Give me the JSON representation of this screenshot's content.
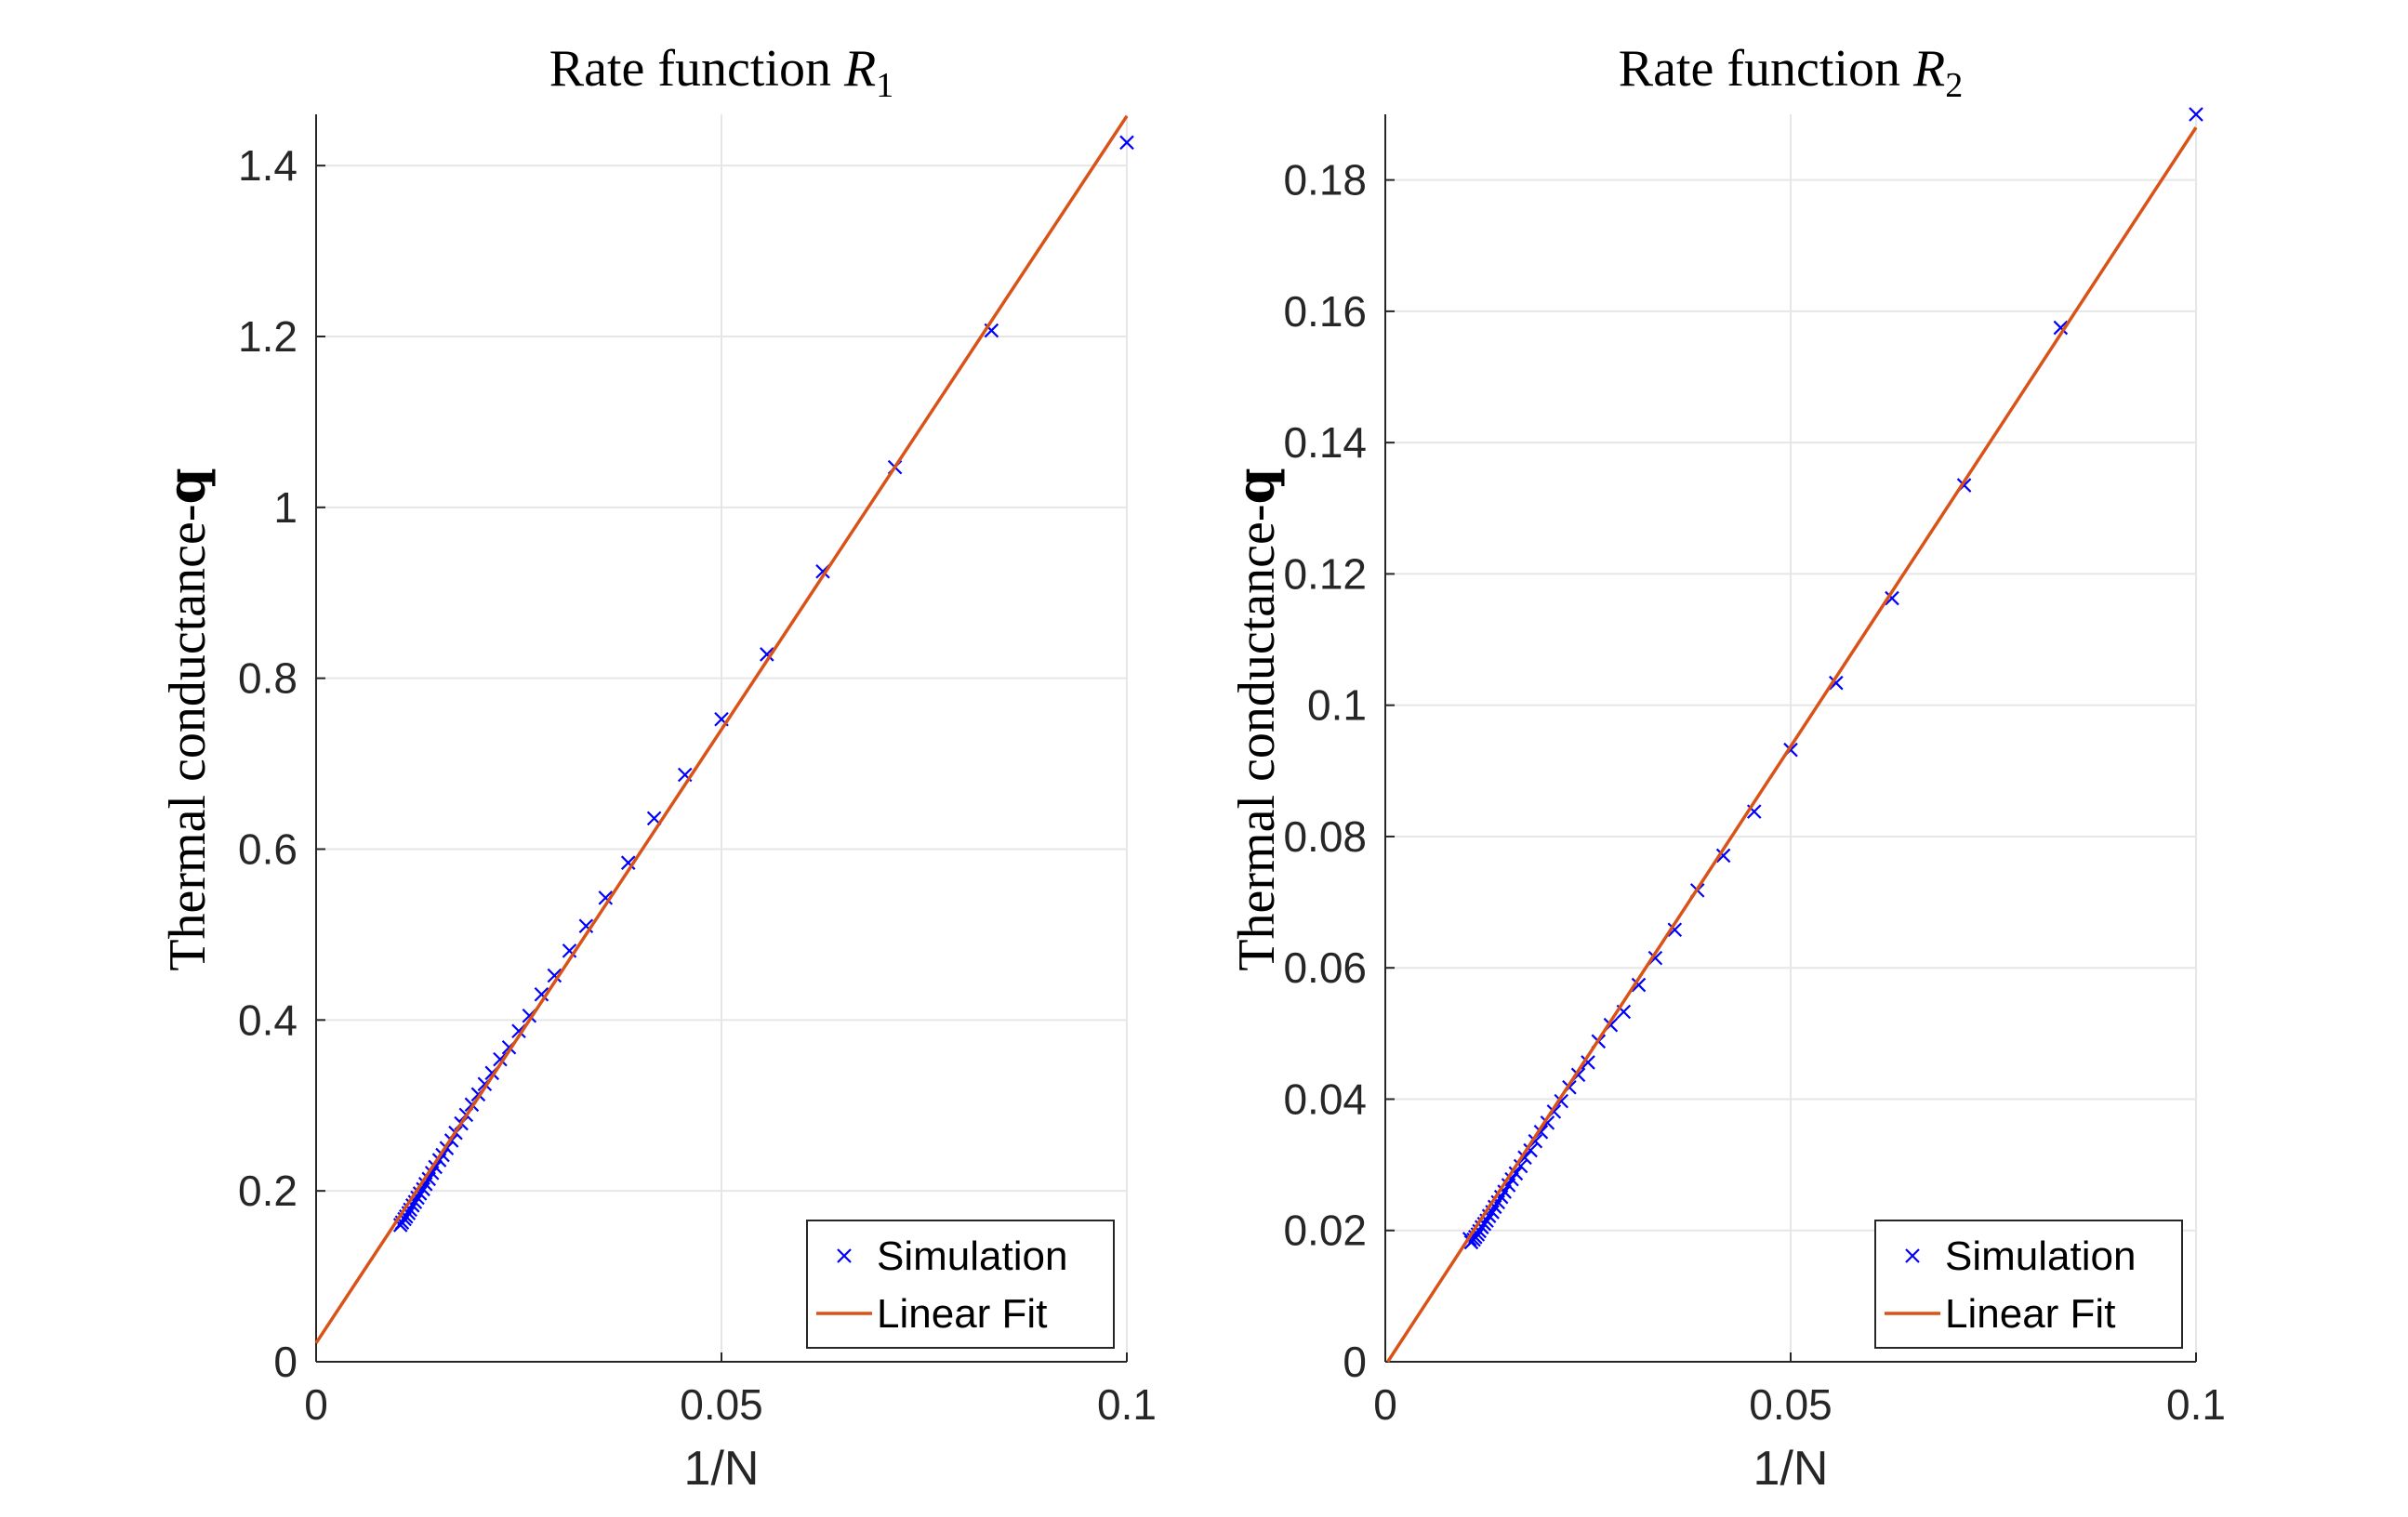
{
  "chart_data": [
    {
      "type": "scatter",
      "title_prefix": "Rate function ",
      "title_math": "R",
      "title_sub": "1",
      "xlabel": "1/N",
      "ylabel_prefix": "Thermal conductance-",
      "ylabel_bold": "q",
      "xlim": [
        0,
        0.1
      ],
      "ylim": [
        0,
        1.46
      ],
      "xticks": [
        0,
        0.05,
        0.1
      ],
      "xtick_labels": [
        "0",
        "0.05",
        "0.1"
      ],
      "yticks": [
        0,
        0.2,
        0.4,
        0.6,
        0.8,
        1.0,
        1.2,
        1.4
      ],
      "ytick_labels": [
        "0",
        "0.2",
        "0.4",
        "0.6",
        "0.8",
        "1",
        "1.2",
        "1.4"
      ],
      "grid": true,
      "legend_location": "bottom-right",
      "series": [
        {
          "name": "Simulation",
          "marker": "x",
          "color": "#0000ff",
          "points": [
            [
              0.1,
              1.427
            ],
            [
              0.0833,
              1.207
            ],
            [
              0.0714,
              1.047
            ],
            [
              0.0625,
              0.925
            ],
            [
              0.0556,
              0.828
            ],
            [
              0.05,
              0.752
            ],
            [
              0.0455,
              0.687
            ],
            [
              0.0417,
              0.636
            ],
            [
              0.0385,
              0.584
            ],
            [
              0.0357,
              0.543
            ],
            [
              0.0333,
              0.51
            ],
            [
              0.03125,
              0.481
            ],
            [
              0.0294,
              0.452
            ],
            [
              0.0278,
              0.43
            ],
            [
              0.0263,
              0.405
            ],
            [
              0.025,
              0.387
            ],
            [
              0.0238,
              0.368
            ],
            [
              0.0227,
              0.354
            ],
            [
              0.0217,
              0.338
            ],
            [
              0.0208,
              0.325
            ],
            [
              0.02,
              0.313
            ],
            [
              0.0192,
              0.301
            ],
            [
              0.0185,
              0.289
            ],
            [
              0.0179,
              0.279
            ],
            [
              0.0172,
              0.268
            ],
            [
              0.0167,
              0.259
            ],
            [
              0.0161,
              0.25
            ],
            [
              0.0156,
              0.242
            ],
            [
              0.0152,
              0.236
            ],
            [
              0.0147,
              0.228
            ],
            [
              0.0143,
              0.221
            ],
            [
              0.0139,
              0.214
            ],
            [
              0.0135,
              0.208
            ],
            [
              0.0132,
              0.202
            ],
            [
              0.0128,
              0.197
            ],
            [
              0.0125,
              0.192
            ],
            [
              0.0122,
              0.187
            ],
            [
              0.0119,
              0.183
            ],
            [
              0.0116,
              0.178
            ],
            [
              0.0114,
              0.174
            ],
            [
              0.0111,
              0.17
            ],
            [
              0.0109,
              0.167
            ],
            [
              0.0106,
              0.163
            ],
            [
              0.0104,
              0.16
            ]
          ]
        },
        {
          "name": "Linear Fit",
          "line": true,
          "color": "#d95319",
          "points": [
            [
              0,
              0.022
            ],
            [
              0.1,
              1.458
            ]
          ]
        }
      ]
    },
    {
      "type": "scatter",
      "title_prefix": "Rate function ",
      "title_math": "R",
      "title_sub": "2",
      "xlabel": "1/N",
      "ylabel_prefix": "Thermal conductance-",
      "ylabel_bold": "q",
      "xlim": [
        0,
        0.1
      ],
      "ylim": [
        0,
        0.19
      ],
      "xticks": [
        0,
        0.05,
        0.1
      ],
      "xtick_labels": [
        "0",
        "0.05",
        "0.1"
      ],
      "yticks": [
        0,
        0.02,
        0.04,
        0.06,
        0.08,
        0.1,
        0.12,
        0.14,
        0.16,
        0.18
      ],
      "ytick_labels": [
        "0",
        "0.02",
        "0.04",
        "0.06",
        "0.08",
        "0.1",
        "0.12",
        "0.14",
        "0.16",
        "0.18"
      ],
      "grid": true,
      "legend_location": "bottom-right",
      "series": [
        {
          "name": "Simulation",
          "marker": "x",
          "color": "#0000ff",
          "points": [
            [
              0.1,
              0.19
            ],
            [
              0.0833,
              0.1575
            ],
            [
              0.0714,
              0.1335
            ],
            [
              0.0625,
              0.1163
            ],
            [
              0.0556,
              0.1034
            ],
            [
              0.05,
              0.0932
            ],
            [
              0.0455,
              0.0838
            ],
            [
              0.0417,
              0.0771
            ],
            [
              0.0385,
              0.0718
            ],
            [
              0.0357,
              0.0658
            ],
            [
              0.0333,
              0.0615
            ],
            [
              0.03125,
              0.0574
            ],
            [
              0.0294,
              0.0533
            ],
            [
              0.0278,
              0.0513
            ],
            [
              0.0263,
              0.0488
            ],
            [
              0.025,
              0.0456
            ],
            [
              0.0238,
              0.0437
            ],
            [
              0.0227,
              0.0418
            ],
            [
              0.0217,
              0.0397
            ],
            [
              0.0208,
              0.0381
            ],
            [
              0.02,
              0.0364
            ],
            [
              0.0192,
              0.035
            ],
            [
              0.0185,
              0.0336
            ],
            [
              0.0179,
              0.0322
            ],
            [
              0.0172,
              0.0311
            ],
            [
              0.0167,
              0.0298
            ],
            [
              0.0161,
              0.0287
            ],
            [
              0.0156,
              0.0278
            ],
            [
              0.0152,
              0.0269
            ],
            [
              0.0147,
              0.0259
            ],
            [
              0.0143,
              0.0251
            ],
            [
              0.0139,
              0.0243
            ],
            [
              0.0135,
              0.0236
            ],
            [
              0.0132,
              0.0228
            ],
            [
              0.0128,
              0.0222
            ],
            [
              0.0125,
              0.0215
            ],
            [
              0.0122,
              0.021
            ],
            [
              0.0119,
              0.0205
            ],
            [
              0.0116,
              0.0199
            ],
            [
              0.0114,
              0.0194
            ],
            [
              0.0111,
              0.019
            ],
            [
              0.0109,
              0.0186
            ],
            [
              0.0106,
              0.0182
            ],
            [
              0.0104,
              0.0187
            ]
          ]
        },
        {
          "name": "Linear Fit",
          "line": true,
          "color": "#d95319",
          "points": [
            [
              0.0003,
              0.0
            ],
            [
              0.1,
              0.188
            ]
          ]
        }
      ]
    }
  ]
}
